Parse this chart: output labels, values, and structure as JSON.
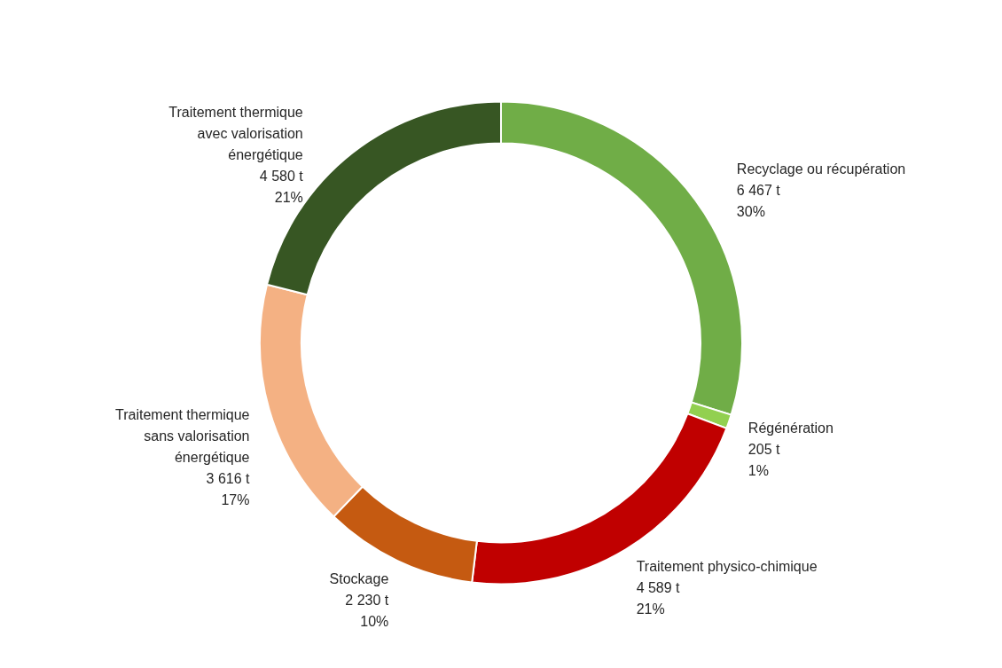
{
  "chart_data": {
    "type": "donut",
    "categories": [
      "Recyclage ou récupération",
      "Régénération",
      "Traitement physico-chimique",
      "Stockage",
      "Traitement thermique\nsans valorisation\nénergétique",
      "Traitement thermique\navec valorisation\nénergétique"
    ],
    "values": [
      6467,
      205,
      4589,
      2230,
      3616,
      4580
    ],
    "colors": [
      "#70ad47",
      "#92d050",
      "#c00000",
      "#c55a11",
      "#f4b183",
      "#375623"
    ],
    "value_labels": [
      "6 467 t\n30%",
      "205 t\n1%",
      "4 589 t\n21%",
      "2 230 t\n10%",
      "3 616 t\n17%",
      "4 580 t\n21%"
    ]
  }
}
